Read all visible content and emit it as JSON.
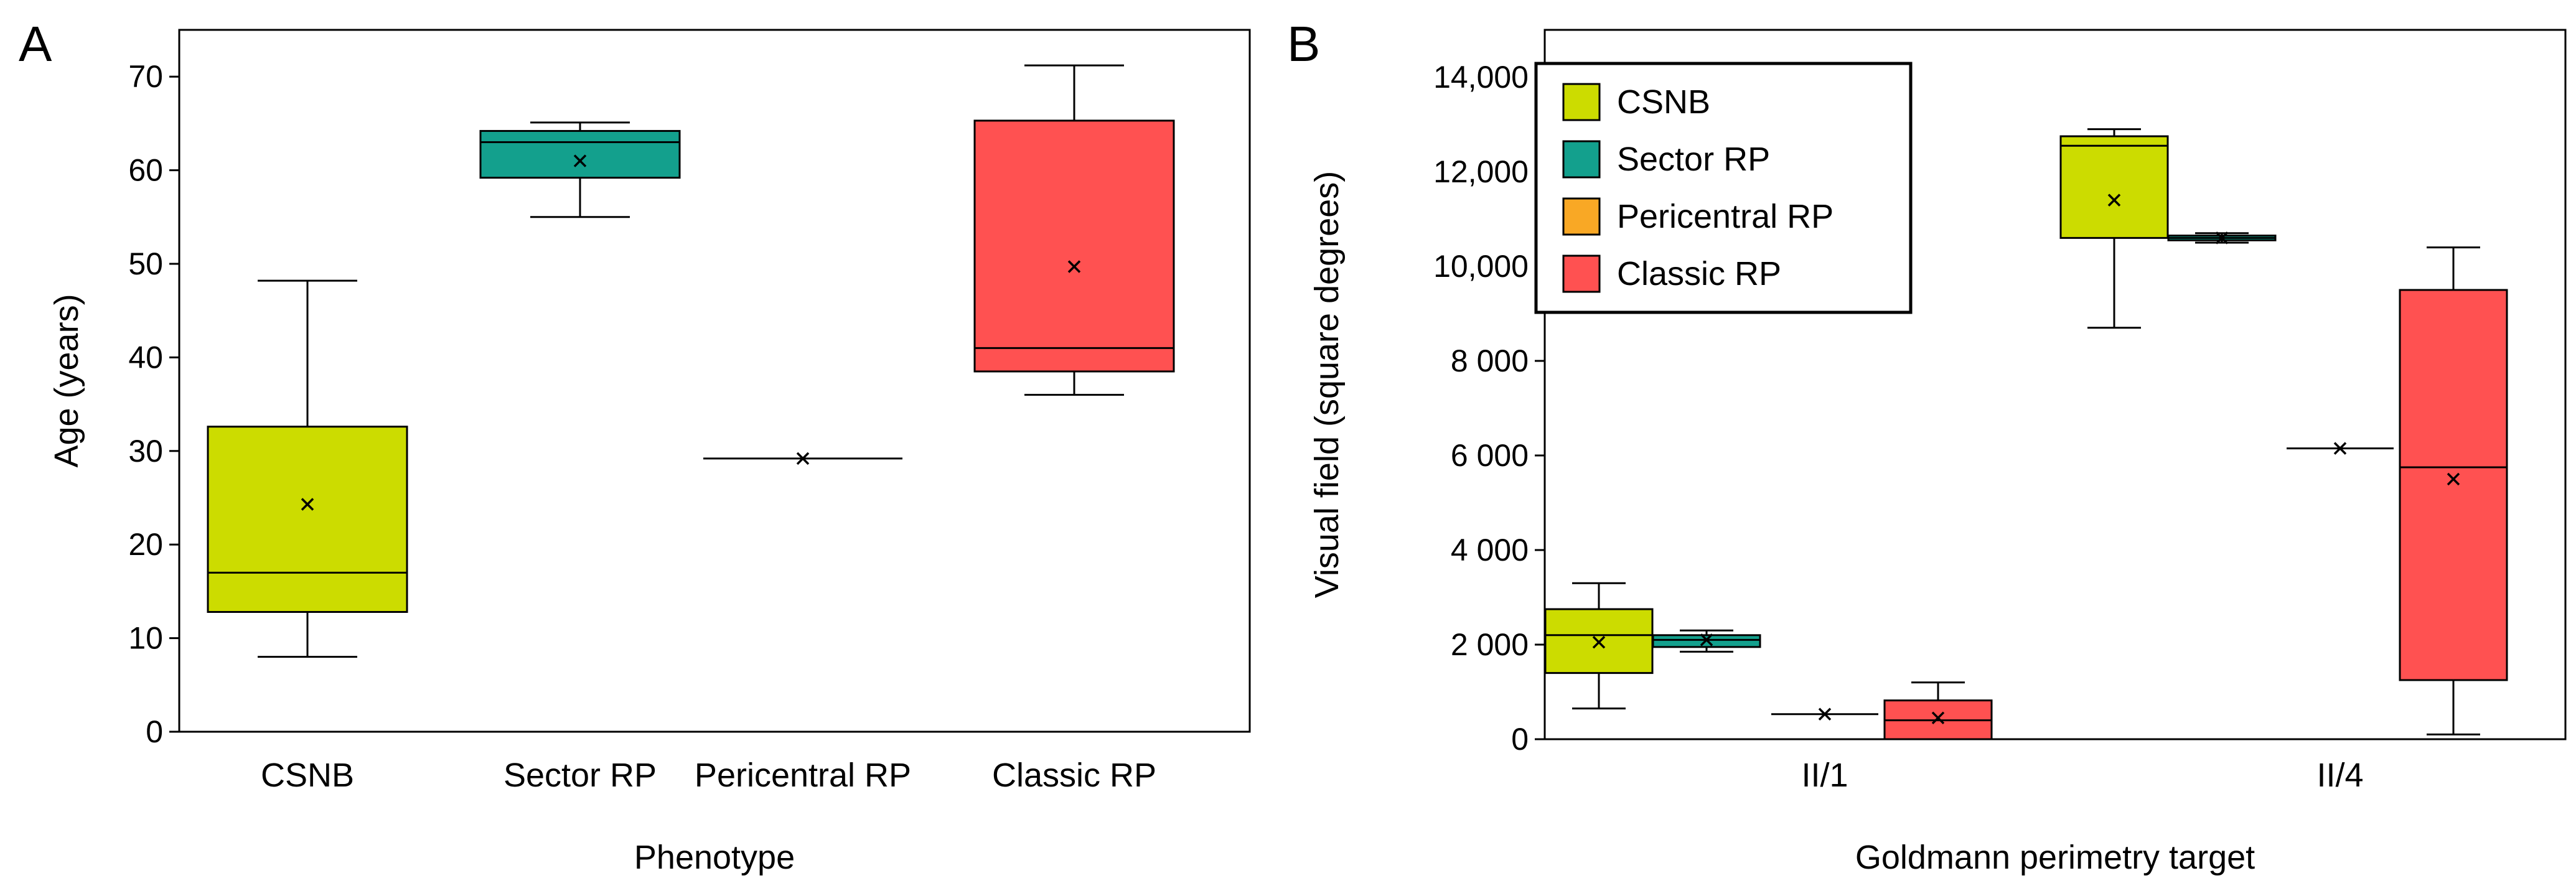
{
  "chart_data": [
    {
      "panel": "A",
      "type": "box",
      "title": "",
      "xlabel": "Phenotype",
      "ylabel": "Age (years)",
      "ylim": [
        0,
        75
      ],
      "yticks": [
        0,
        10,
        20,
        30,
        40,
        50,
        60,
        70
      ],
      "grid": false,
      "categories": [
        "CSNB",
        "Sector RP",
        "Pericentral RP",
        "Classic RP"
      ],
      "series": [
        {
          "name": "CSNB",
          "color": "#CCDC00",
          "min": 8,
          "q1": 12.8,
          "median": 17,
          "q3": 32.6,
          "max": 48.2,
          "mean": 24.3
        },
        {
          "name": "Sector RP",
          "color": "#13A08D",
          "min": 55,
          "q1": 59.2,
          "median": 63,
          "q3": 64.2,
          "max": 65.1,
          "mean": 61
        },
        {
          "name": "Pericentral RP",
          "color": "#F9A825",
          "min": 29.2,
          "q1": 29.2,
          "median": 29.2,
          "q3": 29.2,
          "max": 29.2,
          "mean": 29.2
        },
        {
          "name": "Classic RP",
          "color": "#FF5151",
          "min": 36,
          "q1": 38.5,
          "median": 41,
          "q3": 65.3,
          "max": 71.2,
          "mean": 49.7
        }
      ]
    },
    {
      "panel": "B",
      "type": "box",
      "title": "",
      "xlabel": "Goldmann perimetry target",
      "ylabel": "Visual field (square degrees)",
      "ylim": [
        0,
        15000
      ],
      "yticks": [
        0,
        2000,
        4000,
        6000,
        8000,
        10000,
        12000,
        14000
      ],
      "ytick_labels": [
        "0",
        "2 000",
        "4 000",
        "6 000",
        "8 000",
        "10,000",
        "12,000",
        "14,000"
      ],
      "grid": false,
      "legend_position": "top-left",
      "categories": [
        "II/1",
        "II/4"
      ],
      "series": [
        {
          "name": "CSNB",
          "color": "#CCDC00",
          "boxes": [
            {
              "min": 650,
              "q1": 1400,
              "median": 2200,
              "q3": 2750,
              "max": 3300,
              "mean": 2050
            },
            {
              "min": 8700,
              "q1": 10600,
              "median": 12550,
              "q3": 12750,
              "max": 12900,
              "mean": 11400
            }
          ]
        },
        {
          "name": "Sector RP",
          "color": "#13A08D",
          "boxes": [
            {
              "min": 1850,
              "q1": 1950,
              "median": 2100,
              "q3": 2200,
              "max": 2300,
              "mean": 2100
            },
            {
              "min": 10500,
              "q1": 10550,
              "median": 10600,
              "q3": 10650,
              "max": 10700,
              "mean": 10600
            }
          ]
        },
        {
          "name": "Pericentral RP",
          "color": "#F9A825",
          "boxes": [
            {
              "min": 530,
              "q1": 530,
              "median": 530,
              "q3": 530,
              "max": 530,
              "mean": 530
            },
            {
              "min": 6150,
              "q1": 6150,
              "median": 6150,
              "q3": 6150,
              "max": 6150,
              "mean": 6150
            }
          ]
        },
        {
          "name": "Classic RP",
          "color": "#FF5151",
          "boxes": [
            {
              "min": 0,
              "q1": 0,
              "median": 400,
              "q3": 820,
              "max": 1200,
              "mean": 450
            },
            {
              "min": 100,
              "q1": 1250,
              "median": 5750,
              "q3": 9500,
              "max": 10400,
              "mean": 5500
            }
          ]
        }
      ]
    }
  ]
}
